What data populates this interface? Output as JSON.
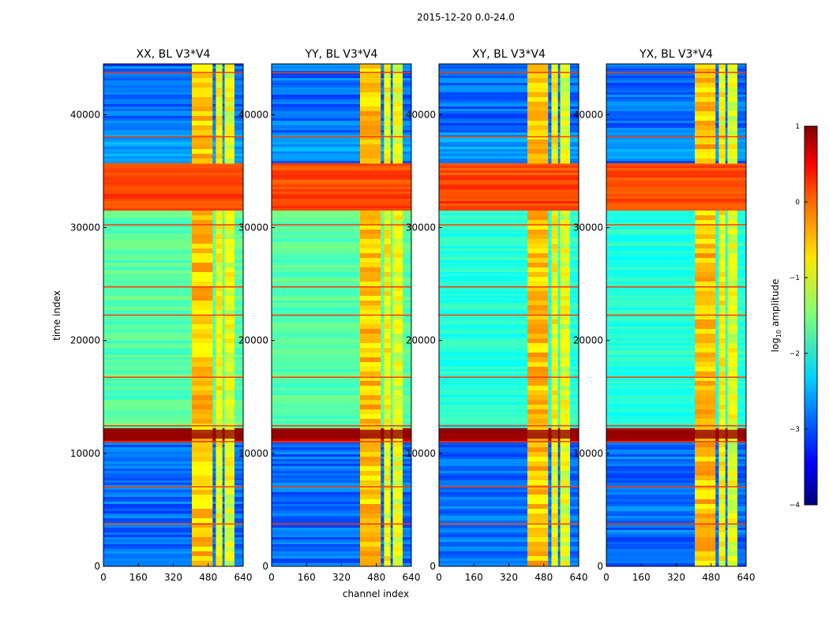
{
  "figure": {
    "suptitle": "2015-12-20 0.0-24.0",
    "colors": {
      "background_low": "#0a2fd9",
      "band_orange": "#ff7b00",
      "band_red": "#8b0000",
      "band_green": "#7cf08a"
    }
  },
  "chart_data": {
    "type": "heatmap",
    "xlabel": "channel index",
    "ylabel": "time index",
    "xlim": [
      0,
      640
    ],
    "ylim": [
      0,
      44500
    ],
    "xticks": [
      0,
      160,
      320,
      480,
      640
    ],
    "yticks": [
      0,
      10000,
      20000,
      30000,
      40000
    ],
    "panels": [
      {
        "title": "XX, BL V3*V4",
        "variant": 0
      },
      {
        "title": "YY, BL V3*V4",
        "variant": 1
      },
      {
        "title": "XY, BL V3*V4",
        "variant": 2
      },
      {
        "title": "YX, BL V3*V4",
        "variant": 3
      }
    ],
    "colorbar": {
      "label": "log₁₀ amplitude",
      "label_base": "log",
      "label_sub": "10",
      "label_rest": " amplitude",
      "min": -4,
      "max": 1,
      "ticks": [
        1,
        0,
        -1,
        -2,
        -3,
        -4
      ],
      "tick_labels": [
        "1",
        "0",
        "−1",
        "−2",
        "−3",
        "−4"
      ],
      "colormap": "jet"
    },
    "time_bands": [
      {
        "t0": 31700,
        "t1": 35900,
        "level": 0.05,
        "label": "orange block"
      },
      {
        "t0": 11000,
        "t1": 12400,
        "level": 0.8,
        "label": "red band"
      },
      {
        "t0": 12400,
        "t1": 31700,
        "level": -1.7,
        "label": "green region"
      },
      {
        "t0": 36000,
        "t1": 38600,
        "level": -2.6,
        "label": "mid band"
      }
    ],
    "channel_bands": [
      {
        "c0": 405,
        "c1": 500,
        "level": -0.6
      },
      {
        "c0": 515,
        "c1": 545,
        "level": -0.9
      },
      {
        "c0": 555,
        "c1": 600,
        "level": -1.0
      }
    ],
    "band_highlight_lines": [
      3800,
      7100,
      11100,
      12500,
      16800,
      22300,
      24800,
      30300,
      38100,
      43800
    ]
  }
}
